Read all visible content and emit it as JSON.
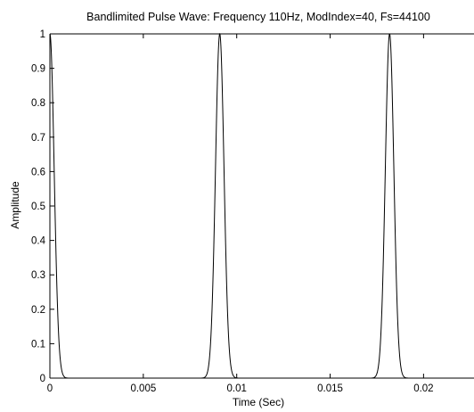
{
  "chart_data": {
    "type": "line",
    "title": "Bandlimited Pulse Wave: Frequency 110Hz, ModIndex=40, Fs=44100",
    "xlabel": "Time (Sec)",
    "ylabel": "Amplitude",
    "xlim": [
      0,
      0.0227
    ],
    "ylim": [
      0,
      1
    ],
    "xticks": [
      0,
      0.005,
      0.01,
      0.015,
      0.02
    ],
    "xtick_labels": [
      "0",
      "0.005",
      "0.01",
      "0.015",
      "0.02"
    ],
    "yticks": [
      0,
      0.1,
      0.2,
      0.3,
      0.4,
      0.5,
      0.6,
      0.7,
      0.8,
      0.9,
      1
    ],
    "ytick_labels": [
      "0",
      "0.1",
      "0.2",
      "0.3",
      "0.4",
      "0.5",
      "0.6",
      "0.7",
      "0.8",
      "0.9",
      "1"
    ],
    "grid": false,
    "series": [
      {
        "color": "#000000",
        "period": 0.0090909,
        "peak_times": [
          0,
          0.0090909,
          0.0181818
        ],
        "mod_index": 40
      }
    ]
  }
}
